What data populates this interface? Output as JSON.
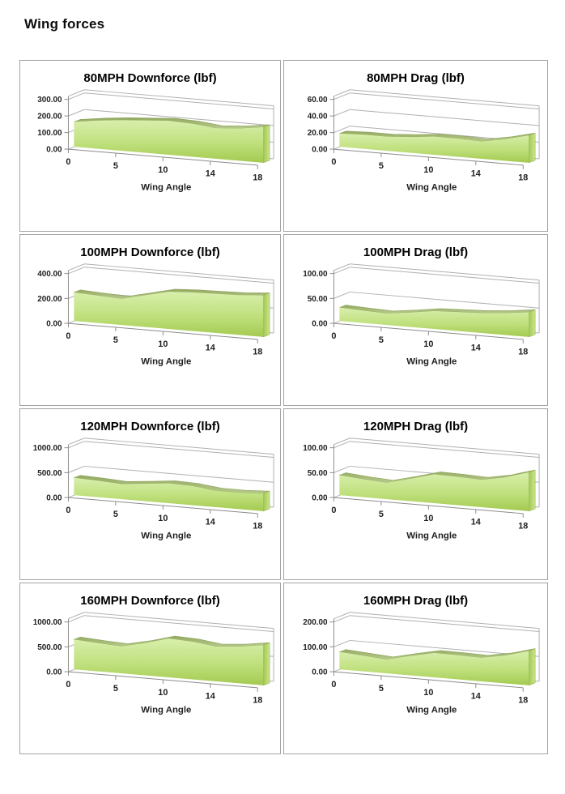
{
  "page": {
    "title": "Wing forces"
  },
  "colors": {
    "area_fill_top": "#d8efac",
    "area_fill_mid": "#bfe07c",
    "area_fill_bottom": "#a4ca50",
    "area_band_dark": "#93a960",
    "area_band_light": "#b7c98c",
    "area_band_edge": "#8ea45b",
    "area_side_dark": "#a3c654",
    "area_side_light": "#c9e68a",
    "gridline": "#b0b0b0",
    "axis_line": "#8c8c8c",
    "tick_text": "#1f1f1f",
    "panel_border": "#a3a3a3"
  },
  "chart_data": [
    {
      "type": "area",
      "style": "3d-area",
      "speed_mph": 80,
      "measure": "Downforce",
      "title": "80MPH Downforce (lbf)",
      "xlabel": "Wing Angle",
      "categories": [
        0,
        2,
        5,
        7,
        10,
        12,
        14,
        16,
        18
      ],
      "values": [
        150,
        170,
        185,
        195,
        205,
        200,
        185,
        195,
        215
      ],
      "ylim": [
        0,
        300
      ],
      "ymax": 300,
      "y_ticks": [
        0,
        100,
        200,
        300
      ],
      "y_tick_labels": [
        "0.00",
        "100.00",
        "200.00",
        "300.00"
      ],
      "x_tick_labels": [
        "0",
        "5",
        "10",
        "14",
        "18"
      ],
      "x_tick_indices": [
        0,
        2,
        4,
        6,
        8
      ],
      "grid": true,
      "legend": false
    },
    {
      "type": "area",
      "style": "3d-area",
      "speed_mph": 80,
      "measure": "Drag",
      "title": "80MPH Drag (lbf)",
      "xlabel": "Wing Angle",
      "categories": [
        0,
        2,
        5,
        7,
        10,
        12,
        14,
        16,
        18
      ],
      "values": [
        16,
        17,
        17,
        19,
        22,
        22,
        21,
        26,
        33
      ],
      "ylim": [
        0,
        60
      ],
      "ymax": 60,
      "y_ticks": [
        0,
        20,
        40,
        60
      ],
      "y_tick_labels": [
        "0.00",
        "20.00",
        "40.00",
        "60.00"
      ],
      "x_tick_labels": [
        "0",
        "5",
        "10",
        "14",
        "18"
      ],
      "x_tick_indices": [
        0,
        2,
        4,
        6,
        8
      ],
      "grid": true,
      "legend": false
    },
    {
      "type": "area",
      "style": "3d-area",
      "speed_mph": 100,
      "measure": "Downforce",
      "title": "100MPH Downforce (lbf)",
      "xlabel": "Wing Angle",
      "categories": [
        0,
        2,
        5,
        7,
        10,
        12,
        14,
        16,
        18
      ],
      "values": [
        230,
        220,
        210,
        255,
        300,
        310,
        315,
        320,
        335
      ],
      "ylim": [
        0,
        400
      ],
      "ymax": 400,
      "y_ticks": [
        0,
        200,
        400
      ],
      "y_tick_labels": [
        "0.00",
        "200.00",
        "400.00"
      ],
      "x_tick_labels": [
        "0",
        "5",
        "10",
        "14",
        "18"
      ],
      "x_tick_indices": [
        0,
        2,
        4,
        6,
        8
      ],
      "grid": true,
      "legend": false
    },
    {
      "type": "area",
      "style": "3d-area",
      "speed_mph": 100,
      "measure": "Drag",
      "title": "100MPH Drag (lbf)",
      "xlabel": "Wing Angle",
      "categories": [
        0,
        2,
        5,
        7,
        10,
        12,
        14,
        16,
        18
      ],
      "values": [
        27,
        25,
        23,
        29,
        36,
        38,
        40,
        44,
        50
      ],
      "ylim": [
        0,
        100
      ],
      "ymax": 100,
      "y_ticks": [
        0,
        50,
        100
      ],
      "y_tick_labels": [
        "0.00",
        "50.00",
        "100.00"
      ],
      "x_tick_labels": [
        "0",
        "5",
        "10",
        "14",
        "18"
      ],
      "x_tick_indices": [
        0,
        2,
        4,
        6,
        8
      ],
      "grid": true,
      "legend": false
    },
    {
      "type": "area",
      "style": "3d-area",
      "speed_mph": 120,
      "measure": "Downforce",
      "title": "120MPH Downforce (lbf)",
      "xlabel": "Wing Angle",
      "categories": [
        0,
        2,
        5,
        7,
        10,
        12,
        14,
        16,
        18
      ],
      "values": [
        350,
        330,
        305,
        350,
        400,
        385,
        330,
        330,
        355
      ],
      "ylim": [
        0,
        1000
      ],
      "ymax": 1000,
      "y_ticks": [
        0,
        500,
        1000
      ],
      "y_tick_labels": [
        "0.00",
        "500.00",
        "1000.00"
      ],
      "x_tick_labels": [
        "0",
        "5",
        "10",
        "14",
        "18"
      ],
      "x_tick_indices": [
        0,
        2,
        4,
        6,
        8
      ],
      "grid": true,
      "legend": false
    },
    {
      "type": "area",
      "style": "3d-area",
      "speed_mph": 120,
      "measure": "Drag",
      "title": "120MPH Drag (lbf)",
      "xlabel": "Wing Angle",
      "categories": [
        0,
        2,
        5,
        7,
        10,
        12,
        14,
        16,
        18
      ],
      "values": [
        40,
        36,
        33,
        45,
        58,
        57,
        55,
        64,
        78
      ],
      "ylim": [
        0,
        100
      ],
      "ymax": 100,
      "y_ticks": [
        0,
        50,
        100
      ],
      "y_tick_labels": [
        "0.00",
        "50.00",
        "100.00"
      ],
      "x_tick_labels": [
        "0",
        "5",
        "10",
        "14",
        "18"
      ],
      "x_tick_indices": [
        0,
        2,
        4,
        6,
        8
      ],
      "grid": true,
      "legend": false
    },
    {
      "type": "area",
      "style": "3d-area",
      "speed_mph": 160,
      "measure": "Downforce",
      "title": "160MPH Downforce (lbf)",
      "xlabel": "Wing Angle",
      "categories": [
        0,
        2,
        5,
        7,
        10,
        12,
        14,
        16,
        18
      ],
      "values": [
        600,
        570,
        545,
        650,
        780,
        760,
        700,
        740,
        810
      ],
      "ylim": [
        0,
        1000
      ],
      "ymax": 1000,
      "y_ticks": [
        0,
        500,
        1000
      ],
      "y_tick_labels": [
        "0.00",
        "500.00",
        "1000.00"
      ],
      "x_tick_labels": [
        "0",
        "5",
        "10",
        "14",
        "18"
      ],
      "x_tick_indices": [
        0,
        2,
        4,
        6,
        8
      ],
      "grid": true,
      "legend": false
    },
    {
      "type": "area",
      "style": "3d-area",
      "speed_mph": 160,
      "measure": "Drag",
      "title": "160MPH Drag (lbf)",
      "xlabel": "Wing Angle",
      "categories": [
        0,
        2,
        5,
        7,
        10,
        12,
        14,
        16,
        18
      ],
      "values": [
        70,
        63,
        56,
        78,
        98,
        97,
        95,
        112,
        138
      ],
      "ylim": [
        0,
        200
      ],
      "ymax": 200,
      "y_ticks": [
        0,
        100,
        200
      ],
      "y_tick_labels": [
        "0.00",
        "100.00",
        "200.00"
      ],
      "x_tick_labels": [
        "0",
        "5",
        "10",
        "14",
        "18"
      ],
      "x_tick_indices": [
        0,
        2,
        4,
        6,
        8
      ],
      "grid": true,
      "legend": false
    }
  ]
}
